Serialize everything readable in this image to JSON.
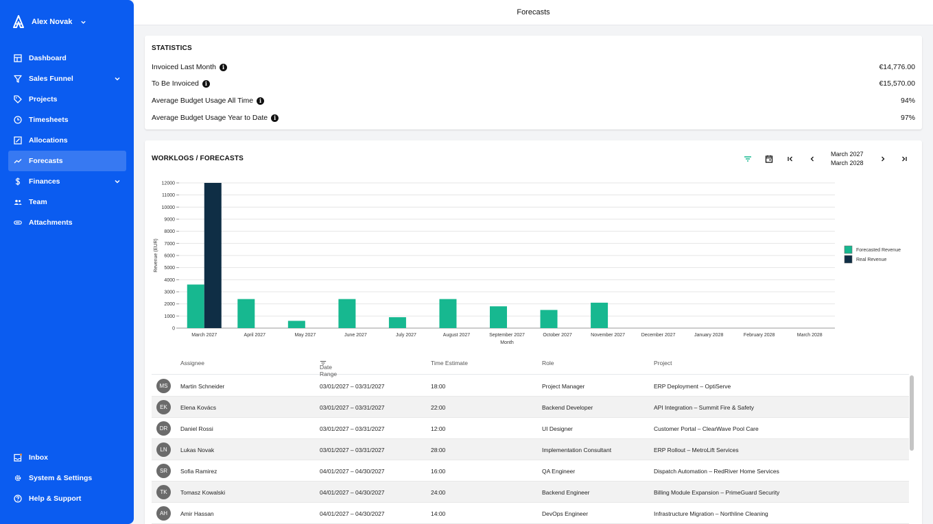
{
  "user": {
    "name": "Alex Novak"
  },
  "nav": {
    "items": [
      {
        "label": "Dashboard"
      },
      {
        "label": "Sales Funnel"
      },
      {
        "label": "Projects"
      },
      {
        "label": "Timesheets"
      },
      {
        "label": "Allocations"
      },
      {
        "label": "Forecasts"
      },
      {
        "label": "Finances"
      },
      {
        "label": "Team"
      },
      {
        "label": "Attachments"
      }
    ],
    "bottom": [
      {
        "label": "Inbox"
      },
      {
        "label": "System & Settings"
      },
      {
        "label": "Help & Support"
      }
    ]
  },
  "header": {
    "title": "Forecasts"
  },
  "statistics": {
    "title": "STATISTICS",
    "rows": [
      {
        "label": "Invoiced Last Month",
        "value": "€14,776.00"
      },
      {
        "label": "To Be Invoiced",
        "value": "€15,570.00"
      },
      {
        "label": "Average Budget Usage All Time",
        "value": "94%"
      },
      {
        "label": "Average Budget Usage Year to Date",
        "value": "97%"
      }
    ]
  },
  "worklogs": {
    "title": "WORKLOGS / FORECASTS",
    "range_start": "March 2027",
    "range_end": "March 2028"
  },
  "colors": {
    "forecast": "#17b890",
    "real": "#0f2e45",
    "sidebar": "#0b5cf0"
  },
  "chart_data": {
    "type": "bar",
    "xlabel": "Month",
    "ylabel": "Revenue (EUR)",
    "ylim": [
      0,
      12000
    ],
    "yticks": [
      0,
      1000,
      2000,
      3000,
      4000,
      5000,
      6000,
      7000,
      8000,
      9000,
      10000,
      11000,
      12000
    ],
    "categories": [
      "March 2027",
      "April 2027",
      "May 2027",
      "June 2027",
      "July 2027",
      "August 2027",
      "September 2027",
      "October 2027",
      "November 2027",
      "December 2027",
      "January 2028",
      "February 2028",
      "March 2028"
    ],
    "series": [
      {
        "name": "Forecasted Revenue",
        "values": [
          3600,
          2400,
          600,
          2400,
          900,
          2400,
          1800,
          1500,
          2100,
          0,
          0,
          0,
          0
        ]
      },
      {
        "name": "Real Revenue",
        "values": [
          12000,
          0,
          0,
          0,
          0,
          0,
          0,
          0,
          0,
          0,
          0,
          0,
          0
        ]
      }
    ],
    "legend_position": "right"
  },
  "table": {
    "columns": [
      "Assignee",
      "Date Range",
      "Time Estimate",
      "Role",
      "Project"
    ],
    "rows": [
      {
        "initials": "MS",
        "assignee": "Martin Schneider",
        "date_range": "03/01/2027 – 03/31/2027",
        "time": "18:00",
        "role": "Project Manager",
        "project": "ERP Deployment – OptiServe"
      },
      {
        "initials": "EK",
        "assignee": "Elena Kovács",
        "date_range": "03/01/2027 – 03/31/2027",
        "time": "22:00",
        "role": "Backend Developer",
        "project": "API Integration – Summit Fire & Safety"
      },
      {
        "initials": "DR",
        "assignee": "Daniel Rossi",
        "date_range": "03/01/2027 – 03/31/2027",
        "time": "12:00",
        "role": "UI Designer",
        "project": "Customer Portal – ClearWave Pool Care"
      },
      {
        "initials": "LN",
        "assignee": "Lukas Novak",
        "date_range": "03/01/2027 – 03/31/2027",
        "time": "28:00",
        "role": "Implementation Consultant",
        "project": "ERP Rollout – MetroLift Services"
      },
      {
        "initials": "SR",
        "assignee": "Sofia Ramirez",
        "date_range": "04/01/2027 – 04/30/2027",
        "time": "16:00",
        "role": "QA Engineer",
        "project": "Dispatch Automation – RedRiver Home Services"
      },
      {
        "initials": "TK",
        "assignee": "Tomasz Kowalski",
        "date_range": "04/01/2027 – 04/30/2027",
        "time": "24:00",
        "role": "Backend Engineer",
        "project": "Billing Module Expansion – PrimeGuard Security"
      },
      {
        "initials": "AH",
        "assignee": "Amir Hassan",
        "date_range": "04/01/2027 – 04/30/2027",
        "time": "14:00",
        "role": "DevOps Engineer",
        "project": "Infrastructure Migration – Northline Cleaning"
      }
    ]
  }
}
